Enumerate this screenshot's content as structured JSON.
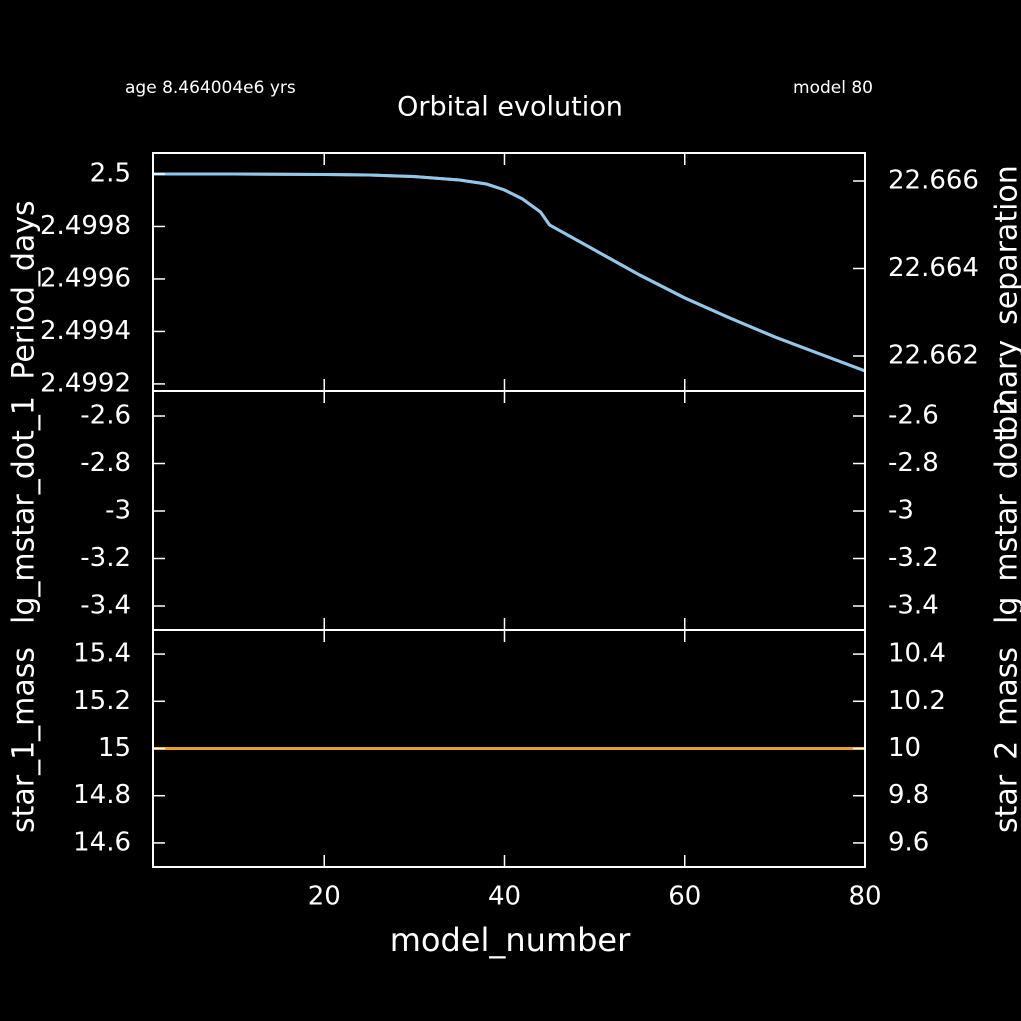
{
  "header": {
    "age": "age 8.464004e6 yrs",
    "model": "model 80"
  },
  "chart_data": [
    {
      "type": "line",
      "title": "Orbital evolution",
      "ylabel": "Period_days",
      "y2label": "binary_separation",
      "x": [
        1,
        10,
        20,
        25,
        30,
        35,
        38,
        40,
        42,
        44,
        45,
        50,
        55,
        60,
        65,
        70,
        75,
        80
      ],
      "series": [
        {
          "name": "Period_days",
          "color": "#e9a227",
          "values": [
            2.5,
            2.5,
            2.499998,
            2.499996,
            2.49999,
            2.499977,
            2.499962,
            2.499939,
            2.499905,
            2.499855,
            2.499806,
            2.49971,
            2.499615,
            2.499528,
            2.499451,
            2.499379,
            2.499314,
            2.49925
          ]
        },
        {
          "name": "binary_separation",
          "color": "#8ec8f0",
          "axis": "y2",
          "values": [
            22.66616,
            22.66616,
            22.666149,
            22.666137,
            22.666103,
            22.666023,
            22.665931,
            22.665794,
            22.665589,
            22.665291,
            22.664994,
            22.664423,
            22.663851,
            22.663326,
            22.662869,
            22.662434,
            22.662046,
            22.661657
          ]
        }
      ],
      "xlim": [
        1,
        80
      ],
      "xticks": [
        20,
        40,
        60,
        80
      ],
      "ylim": [
        2.499173,
        2.50008
      ],
      "yticks": [
        2.4992,
        2.4994,
        2.4996,
        2.4998,
        2.5
      ],
      "y2lim": [
        22.6612,
        22.66664
      ],
      "y2ticks": [
        22.662,
        22.664,
        22.666
      ]
    },
    {
      "type": "line",
      "ylabel": "lg_mstar_dot_1",
      "y2label": "lg_mstar_dot_2",
      "x": [],
      "series": [
        {
          "name": "lg_mstar_dot_1",
          "color": "#e9a227",
          "values": []
        },
        {
          "name": "lg_mstar_dot_2",
          "color": "#8ec8f0",
          "axis": "y2",
          "values": []
        }
      ],
      "xlim": [
        1,
        80
      ],
      "xticks": [
        20,
        40,
        60,
        80
      ],
      "ylim": [
        -3.501,
        -2.4947
      ],
      "yticks": [
        -3.4,
        -3.2,
        -3,
        -2.8,
        -2.6
      ],
      "y2lim": [
        -3.501,
        -2.4947
      ],
      "y2ticks": [
        -3.4,
        -3.2,
        -3,
        -2.8,
        -2.6
      ]
    },
    {
      "type": "line",
      "xlabel": "model_number",
      "ylabel": "star_1_mass",
      "y2label": "star_2_mass",
      "x": [
        1,
        80
      ],
      "series": [
        {
          "name": "star_2_mass",
          "color": "#8ec8f0",
          "axis": "y2",
          "values": [
            10,
            10
          ]
        },
        {
          "name": "star_1_mass",
          "color": "#e9a227",
          "values": [
            15,
            15
          ]
        }
      ],
      "xlim": [
        1,
        80
      ],
      "xticks": [
        20,
        40,
        60,
        80
      ],
      "ylim": [
        14.498,
        15.502
      ],
      "yticks": [
        14.6,
        14.8,
        15,
        15.2,
        15.4
      ],
      "y2lim": [
        9.498,
        10.502
      ],
      "y2ticks": [
        9.6,
        9.8,
        10,
        10.2,
        10.4
      ]
    }
  ]
}
